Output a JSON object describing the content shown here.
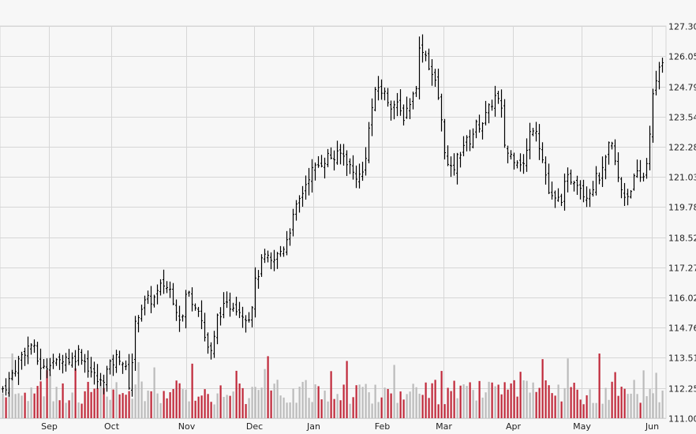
{
  "chart_data": {
    "type": "ohlc_with_volume",
    "y_axis": {
      "side": "right",
      "ticks": [
        127.3,
        126.05,
        124.79,
        123.54,
        122.28,
        121.03,
        119.78,
        118.52,
        117.27,
        116.02,
        114.76,
        113.51,
        112.25,
        111.0
      ],
      "tick_labels": [
        "127.30",
        "126.05",
        "124.79",
        "123.54",
        "122.28",
        "121.03",
        "119.78",
        "118.52",
        "117.27",
        "116.02",
        "114.76",
        "113.51",
        "112.25",
        "111.00"
      ],
      "range": [
        111.0,
        127.3
      ]
    },
    "x_axis": {
      "month_labels": [
        "Sep",
        "Oct",
        "Nov",
        "Dec",
        "Jan",
        "Feb",
        "Mar",
        "Apr",
        "May",
        "Jun"
      ],
      "month_positions": [
        62,
        141,
        236,
        322,
        397,
        484,
        562,
        650,
        737,
        826
      ]
    },
    "grid": true,
    "colors": {
      "up_volume": "#bbbbbb",
      "down_volume": "#c0283a",
      "price_bar": "#000000",
      "grid": "#d6d6d6",
      "background": "#f7f7f7"
    },
    "price_keyframes": [
      [
        2,
        112.2
      ],
      [
        10,
        112.5
      ],
      [
        20,
        113.2
      ],
      [
        30,
        113.8
      ],
      [
        40,
        114.1
      ],
      [
        48,
        113.3
      ],
      [
        56,
        113.0
      ],
      [
        64,
        113.5
      ],
      [
        72,
        113.2
      ],
      [
        80,
        113.6
      ],
      [
        90,
        113.4
      ],
      [
        100,
        113.8
      ],
      [
        110,
        113.2
      ],
      [
        118,
        112.8
      ],
      [
        126,
        112.4
      ],
      [
        134,
        112.9
      ],
      [
        144,
        113.4
      ],
      [
        152,
        113.6
      ],
      [
        158,
        113.1
      ],
      [
        164,
        112.3
      ],
      [
        172,
        115.2
      ],
      [
        180,
        115.7
      ],
      [
        188,
        115.9
      ],
      [
        196,
        116.0
      ],
      [
        206,
        116.6
      ],
      [
        216,
        116.3
      ],
      [
        224,
        115.5
      ],
      [
        230,
        115.0
      ],
      [
        236,
        116.3
      ],
      [
        244,
        115.9
      ],
      [
        252,
        115.6
      ],
      [
        260,
        114.2
      ],
      [
        268,
        113.6
      ],
      [
        276,
        115.4
      ],
      [
        286,
        115.6
      ],
      [
        296,
        115.8
      ],
      [
        306,
        115.4
      ],
      [
        316,
        115.2
      ],
      [
        324,
        116.8
      ],
      [
        334,
        117.7
      ],
      [
        344,
        117.4
      ],
      [
        352,
        117.8
      ],
      [
        360,
        118.2
      ],
      [
        368,
        119.0
      ],
      [
        376,
        119.8
      ],
      [
        384,
        120.5
      ],
      [
        392,
        121.2
      ],
      [
        400,
        121.4
      ],
      [
        408,
        121.7
      ],
      [
        416,
        121.9
      ],
      [
        424,
        121.8
      ],
      [
        432,
        122.0
      ],
      [
        440,
        121.7
      ],
      [
        446,
        121.2
      ],
      [
        452,
        121.1
      ],
      [
        458,
        121.0
      ],
      [
        464,
        122.2
      ],
      [
        470,
        123.8
      ],
      [
        478,
        124.8
      ],
      [
        486,
        124.5
      ],
      [
        494,
        124.1
      ],
      [
        502,
        124.0
      ],
      [
        510,
        123.5
      ],
      [
        518,
        124.1
      ],
      [
        526,
        124.6
      ],
      [
        532,
        126.6
      ],
      [
        538,
        126.2
      ],
      [
        546,
        125.4
      ],
      [
        554,
        124.6
      ],
      [
        560,
        123.0
      ],
      [
        566,
        121.5
      ],
      [
        572,
        121.2
      ],
      [
        578,
        121.7
      ],
      [
        586,
        122.4
      ],
      [
        594,
        122.5
      ],
      [
        602,
        123.1
      ],
      [
        610,
        123.3
      ],
      [
        618,
        123.7
      ],
      [
        626,
        124.4
      ],
      [
        634,
        124.0
      ],
      [
        640,
        122.1
      ],
      [
        648,
        121.9
      ],
      [
        656,
        121.8
      ],
      [
        664,
        121.5
      ],
      [
        672,
        123.0
      ],
      [
        678,
        123.3
      ],
      [
        684,
        122.2
      ],
      [
        690,
        121.3
      ],
      [
        696,
        120.2
      ],
      [
        702,
        120.0
      ],
      [
        710,
        120.1
      ],
      [
        718,
        120.9
      ],
      [
        726,
        121.0
      ],
      [
        732,
        120.9
      ],
      [
        740,
        120.3
      ],
      [
        748,
        120.5
      ],
      [
        756,
        121.0
      ],
      [
        764,
        121.2
      ],
      [
        770,
        122.2
      ],
      [
        776,
        122.3
      ],
      [
        782,
        121.0
      ],
      [
        788,
        120.4
      ],
      [
        794,
        120.2
      ],
      [
        800,
        120.7
      ],
      [
        806,
        121.1
      ],
      [
        812,
        120.9
      ],
      [
        818,
        121.3
      ],
      [
        822,
        122.6
      ],
      [
        826,
        124.2
      ],
      [
        832,
        125.0
      ],
      [
        836,
        125.8
      ],
      [
        840,
        126.0
      ]
    ]
  }
}
